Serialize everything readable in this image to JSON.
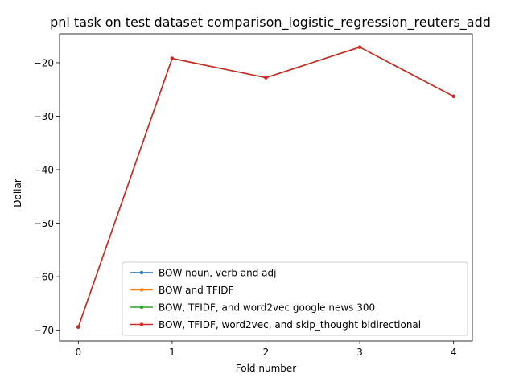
{
  "chart_data": {
    "type": "line",
    "title": "pnl task on test dataset comparison_logistic_regression_reuters_add",
    "xlabel": "Fold number",
    "ylabel": "Dollar",
    "xlim": [
      -0.2,
      4.2
    ],
    "ylim": [
      -72.0,
      -14.6
    ],
    "x_ticks": [
      0,
      1,
      2,
      3,
      4
    ],
    "y_ticks": [
      -70,
      -60,
      -50,
      -40,
      -30,
      -20
    ],
    "x_tick_labels": [
      "0",
      "1",
      "2",
      "3",
      "4"
    ],
    "y_tick_labels": [
      "−70",
      "−60",
      "−50",
      "−40",
      "−30",
      "−20"
    ],
    "grid": false,
    "legend_position": "lower-right",
    "x": [
      0,
      1,
      2,
      3,
      4
    ],
    "series": [
      {
        "name": "BOW noun, verb and adj",
        "color": "#1f77b4",
        "values": [
          -69.4,
          -19.2,
          -22.8,
          -17.1,
          -26.3
        ]
      },
      {
        "name": "BOW and TFIDF",
        "color": "#ff7f0e",
        "values": [
          -69.4,
          -19.2,
          -22.8,
          -17.1,
          -26.3
        ]
      },
      {
        "name": "BOW, TFIDF, and word2vec google news 300",
        "color": "#2ca02c",
        "values": [
          -69.4,
          -19.2,
          -22.8,
          -17.1,
          -26.3
        ]
      },
      {
        "name": "BOW, TFIDF, word2vec, and skip_thought bidirectional",
        "color": "#d62728",
        "values": [
          -69.4,
          -19.2,
          -22.8,
          -17.1,
          -26.3
        ]
      }
    ]
  }
}
